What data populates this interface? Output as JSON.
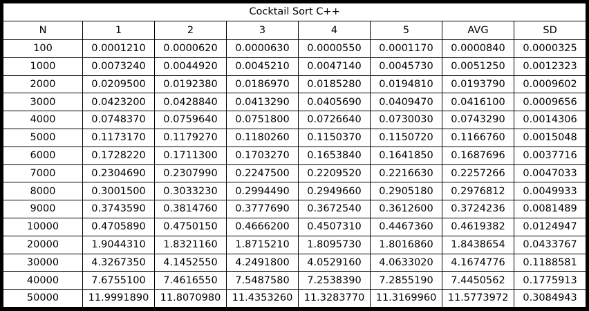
{
  "table": {
    "title": "Cocktail Sort C++",
    "headers": [
      "N",
      "1",
      "2",
      "3",
      "4",
      "5",
      "AVG",
      "SD"
    ],
    "rows": [
      [
        "100",
        "0.0001210",
        "0.0000620",
        "0.0000630",
        "0.0000550",
        "0.0001170",
        "0.0000840",
        "0.0000325"
      ],
      [
        "1000",
        "0.0073240",
        "0.0044920",
        "0.0045210",
        "0.0047140",
        "0.0045730",
        "0.0051250",
        "0.0012323"
      ],
      [
        "2000",
        "0.0209500",
        "0.0192380",
        "0.0186970",
        "0.0185280",
        "0.0194810",
        "0.0193790",
        "0.0009602"
      ],
      [
        "3000",
        "0.0423200",
        "0.0428840",
        "0.0413290",
        "0.0405690",
        "0.0409470",
        "0.0416100",
        "0.0009656"
      ],
      [
        "4000",
        "0.0748370",
        "0.0759640",
        "0.0751800",
        "0.0726640",
        "0.0730030",
        "0.0743290",
        "0.0014306"
      ],
      [
        "5000",
        "0.1173170",
        "0.1179270",
        "0.1180260",
        "0.1150370",
        "0.1150720",
        "0.1166760",
        "0.0015048"
      ],
      [
        "6000",
        "0.1728220",
        "0.1711300",
        "0.1703270",
        "0.1653840",
        "0.1641850",
        "0.1687696",
        "0.0037716"
      ],
      [
        "7000",
        "0.2304690",
        "0.2307990",
        "0.2247500",
        "0.2209520",
        "0.2216630",
        "0.2257266",
        "0.0047033"
      ],
      [
        "8000",
        "0.3001500",
        "0.3033230",
        "0.2994490",
        "0.2949660",
        "0.2905180",
        "0.2976812",
        "0.0049933"
      ],
      [
        "9000",
        "0.3743590",
        "0.3814760",
        "0.3777690",
        "0.3672540",
        "0.3612600",
        "0.3724236",
        "0.0081489"
      ],
      [
        "10000",
        "0.4705890",
        "0.4750150",
        "0.4666200",
        "0.4507310",
        "0.4467360",
        "0.4619382",
        "0.0124947"
      ],
      [
        "20000",
        "1.9044310",
        "1.8321160",
        "1.8715210",
        "1.8095730",
        "1.8016860",
        "1.8438654",
        "0.0433767"
      ],
      [
        "30000",
        "4.3267350",
        "4.1452550",
        "4.2491800",
        "4.0529160",
        "4.0633020",
        "4.1674776",
        "0.1188581"
      ],
      [
        "40000",
        "7.6755100",
        "7.4616550",
        "7.5487580",
        "7.2538390",
        "7.2855190",
        "7.4450562",
        "0.1775913"
      ],
      [
        "50000",
        "11.9991890",
        "11.8070980",
        "11.4353260",
        "11.3283770",
        "11.3169960",
        "11.5773972",
        "0.3084943"
      ]
    ]
  }
}
